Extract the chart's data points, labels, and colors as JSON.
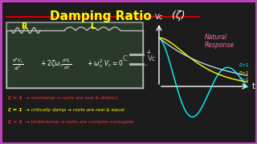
{
  "title": "Damping Ratio",
  "title_color": "#FFFF00",
  "title_zeta": " (ζ)",
  "title_zeta_color": "#FFFFFF",
  "bg_color": "#1C1C1C",
  "underline_color": "#CC0000",
  "circuit_box_color": "#999999",
  "R_label": "R",
  "L_label": "L",
  "C_label": "C",
  "Vc_label_circuit": "Vc",
  "natural_response_label": "Natural\nResponse",
  "natural_response_color": "#FF69B4",
  "curve_underdamp_color": "#00FFFF",
  "curve_critical_color": "#FFFF00",
  "curve_overdamp_color": "#ADD8E6",
  "label_zeta_gt1": "ζ>1",
  "label_zeta_eq1": "ζ=1",
  "label_zeta_lt1": "ζ<1",
  "line1_color": "#FF3333",
  "line1_zeta": "ζ > 1",
  "line1_rest": " → overdamp → roots are real & distinct",
  "line2_color": "#FFFF00",
  "line2_zeta": "ζ = 1",
  "line2_rest": " → critically damp → roots are real & equal",
  "line3_color": "#FF3333",
  "line3_zeta": "ζ < 1",
  "line3_rest": " → Underdamp → roots are complex conjugate",
  "t_label": "t",
  "vc_axis_label": "Vc",
  "border_color": "#CC44CC",
  "wire_color": "#BBBBBB",
  "label_color_yellow": "#FFFF00",
  "white": "#FFFFFF",
  "equation_color": "#FFFFFF"
}
